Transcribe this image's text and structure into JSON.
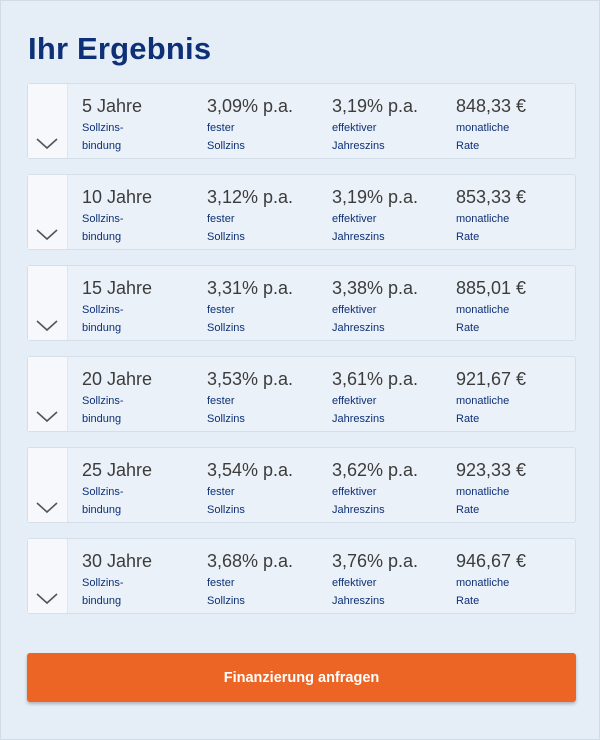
{
  "page": {
    "title": "Ihr Ergebnis"
  },
  "labels": {
    "duration": [
      "Sollzins-",
      "bindung"
    ],
    "fixed_rate": [
      "fester",
      "Sollzins"
    ],
    "effective_rate": [
      "effektiver",
      "Jahreszins"
    ],
    "monthly_rate": [
      "monatliche",
      "Rate"
    ]
  },
  "rows": [
    {
      "years": "5 Jahre",
      "fixed": "3,09% p.a.",
      "effective": "3,19% p.a.",
      "rate": "848,33 €"
    },
    {
      "years": "10 Jahre",
      "fixed": "3,12% p.a.",
      "effective": "3,19% p.a.",
      "rate": "853,33 €"
    },
    {
      "years": "15 Jahre",
      "fixed": "3,31% p.a.",
      "effective": "3,38% p.a.",
      "rate": "885,01 €"
    },
    {
      "years": "20 Jahre",
      "fixed": "3,53% p.a.",
      "effective": "3,61% p.a.",
      "rate": "921,67 €"
    },
    {
      "years": "25 Jahre",
      "fixed": "3,54% p.a.",
      "effective": "3,62% p.a.",
      "rate": "923,33 €"
    },
    {
      "years": "30 Jahre",
      "fixed": "3,68% p.a.",
      "effective": "3,76% p.a.",
      "rate": "946,67 €"
    }
  ],
  "icons": {
    "expand": "chevron-down-icon"
  },
  "cta": {
    "label": "Finanzierung anfragen"
  },
  "colors": {
    "background": "#e5eef7",
    "title": "#0d3077",
    "label": "#0d3077",
    "value": "#3c3c3c",
    "button": "#ec6525"
  }
}
